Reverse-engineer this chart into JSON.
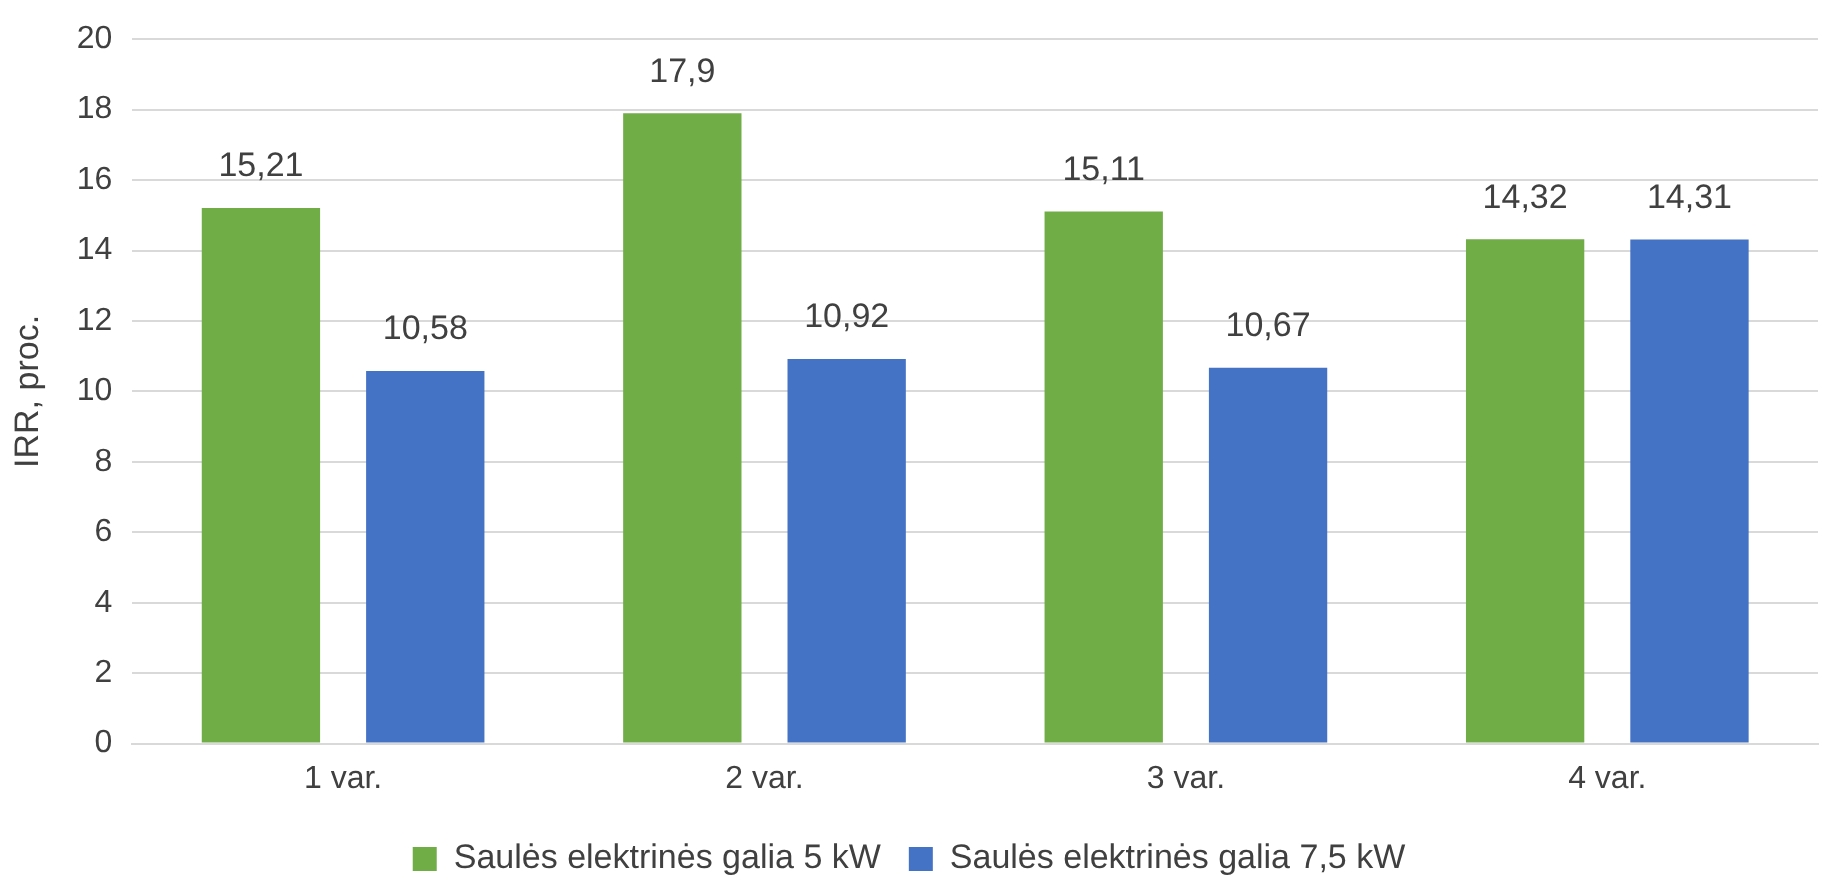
{
  "chart_data": {
    "type": "bar",
    "ylabel": "IRR, proc.",
    "categories": [
      "1 var.",
      "2 var.",
      "3 var.",
      "4 var."
    ],
    "series": [
      {
        "name": "Saulės elektrinės galia 5 kW",
        "color": "#70ad47",
        "values": [
          15.21,
          17.9,
          15.11,
          14.32
        ],
        "value_labels": [
          "15,21",
          "17,9",
          "15,11",
          "14,32"
        ]
      },
      {
        "name": "Saulės elektrinės galia 7,5 kW",
        "color": "#4472c4",
        "values": [
          10.58,
          10.92,
          10.67,
          14.31
        ],
        "value_labels": [
          "10,58",
          "10,92",
          "10,67",
          "14,31"
        ]
      }
    ],
    "ylim": [
      0,
      20
    ],
    "yticks": [
      0,
      2,
      4,
      6,
      8,
      10,
      12,
      14,
      16,
      18,
      20
    ],
    "grid": "y",
    "legend": "bottom"
  }
}
